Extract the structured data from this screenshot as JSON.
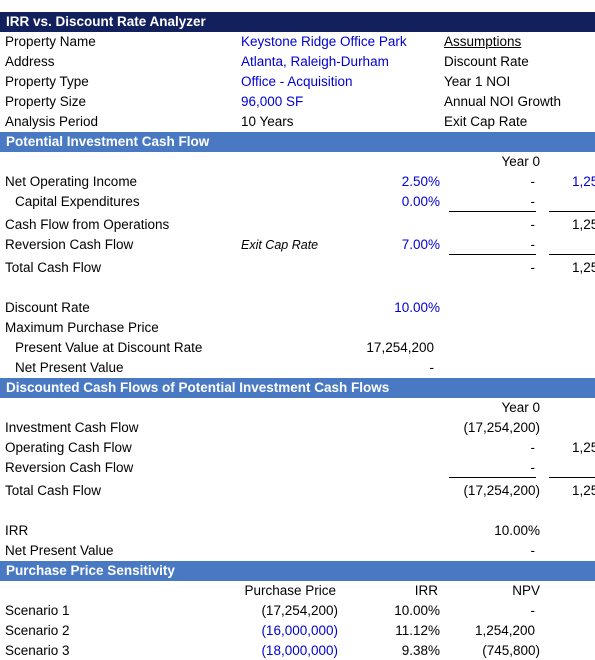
{
  "sections": {
    "title": "IRR vs. Discount Rate Analyzer",
    "potential": "Potential Investment Cash Flow",
    "discounted": "Discounted Cash Flows of Potential Investment Cash Flows",
    "sensitivity": "Purchase Price Sensitivity"
  },
  "property": {
    "rows": [
      {
        "label": "Property Name",
        "value": "Keystone Ridge Office Park"
      },
      {
        "label": "Address",
        "value": "Atlanta, Raleigh-Durham"
      },
      {
        "label": "Property Type",
        "value": "Office - Acquisition"
      },
      {
        "label": "Property Size",
        "value": "96,000 SF"
      },
      {
        "label": "Analysis Period",
        "value": "10 Years"
      }
    ]
  },
  "assumptions": {
    "header": "Assumptions",
    "items": [
      "Discount Rate",
      "Year 1 NOI",
      "Annual NOI Growth",
      "Exit Cap Rate"
    ]
  },
  "potential": {
    "year_header": "Year 0",
    "rows": {
      "noi": {
        "label": "Net Operating Income",
        "rate": "2.50%",
        "year0": "-",
        "year1": "1,25"
      },
      "capex": {
        "label": "Capital Expenditures",
        "rate": "0.00%",
        "year0": "-"
      },
      "cfo": {
        "label": "Cash Flow from Operations",
        "year0": "-",
        "year1": "1,25"
      },
      "reversion": {
        "label": "Reversion Cash Flow",
        "note": "Exit Cap Rate",
        "rate": "7.00%",
        "year0": "-"
      },
      "total": {
        "label": "Total Cash Flow",
        "year0": "-",
        "year1": "1,25"
      }
    },
    "discount_rate": {
      "label": "Discount Rate",
      "value": "10.00%"
    },
    "max_price": {
      "label": "Maximum Purchase Price"
    },
    "pv": {
      "label": "Present Value at Discount Rate",
      "value": "17,254,200"
    },
    "npv": {
      "label": "Net Present Value",
      "value": "-"
    }
  },
  "discounted": {
    "year_header": "Year 0",
    "rows": {
      "investment": {
        "label": "Investment Cash Flow",
        "year0": "(17,254,200)"
      },
      "operating": {
        "label": "Operating Cash Flow",
        "year0": "-",
        "year1": "1,25"
      },
      "reversion": {
        "label": "Reversion Cash Flow",
        "year0": "-"
      },
      "total": {
        "label": "Total Cash Flow",
        "year0": "(17,254,200)",
        "year1": "1,25"
      }
    },
    "irr": {
      "label": "IRR",
      "value": "10.00%"
    },
    "npv": {
      "label": "Net Present Value",
      "value": "-"
    }
  },
  "sensitivity": {
    "headers": {
      "price": "Purchase Price",
      "irr": "IRR",
      "npv": "NPV"
    },
    "rows": [
      {
        "label": "Scenario 1",
        "price": "(17,254,200)",
        "irr": "10.00%",
        "npv": "-"
      },
      {
        "label": "Scenario 2",
        "price": "(16,000,000)",
        "irr": "11.12%",
        "npv": "1,254,200"
      },
      {
        "label": "Scenario 3",
        "price": "(18,000,000)",
        "irr": "9.38%",
        "npv": "(745,800)"
      }
    ]
  },
  "colors": {
    "navy": "#13205e",
    "steel": "#4a79c4",
    "input_blue": "#0000d0"
  }
}
